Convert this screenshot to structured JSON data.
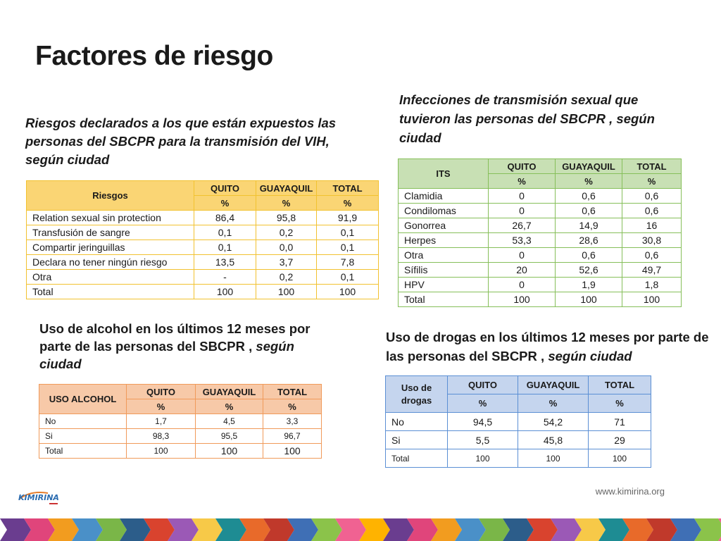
{
  "title": "Factores de riesgo",
  "t1": {
    "caption": "Riesgos declarados a los que están expuestos las personas del SBCPR para la transmisión del VIH, según ciudad",
    "head": [
      "Riesgos",
      "QUITO",
      "GUAYAQUIL",
      "TOTAL"
    ],
    "sub": [
      "%",
      "%",
      "%"
    ],
    "rows": [
      [
        "Relation sexual sin protection",
        "86,4",
        "95,8",
        "91,9"
      ],
      [
        "Transfusión de sangre",
        "0,1",
        "0,2",
        "0,1"
      ],
      [
        "Compartir jeringuillas",
        "0,1",
        "0,0",
        "0,1"
      ],
      [
        "Declara no tener ningún riesgo",
        "13,5",
        "3,7",
        "7,8"
      ],
      [
        "Otra",
        "-",
        "0,2",
        "0,1"
      ],
      [
        "Total",
        "100",
        "100",
        "100"
      ]
    ]
  },
  "t2": {
    "caption": "Infecciones de transmisión sexual que tuvieron las personas del SBCPR , según ciudad",
    "head": [
      "ITS",
      "QUITO",
      "GUAYAQUIL",
      "TOTAL"
    ],
    "sub": [
      "%",
      "%",
      "%"
    ],
    "rows": [
      [
        "Clamidia",
        "0",
        "0,6",
        "0,6"
      ],
      [
        "Condilomas",
        "0",
        "0,6",
        "0,6"
      ],
      [
        "Gonorrea",
        "26,7",
        "14,9",
        "16"
      ],
      [
        "Herpes",
        "53,3",
        "28,6",
        "30,8"
      ],
      [
        "Otra",
        "0",
        "0,6",
        "0,6"
      ],
      [
        "Sífilis",
        "20",
        "52,6",
        "49,7"
      ],
      [
        "HPV",
        "0",
        "1,9",
        "1,8"
      ],
      [
        "Total",
        "100",
        "100",
        "100"
      ]
    ]
  },
  "t3": {
    "caption_a": "Uso de alcohol en los últimos 12 meses por parte de las personas del SBCPR ,",
    "caption_b": "según ciudad",
    "head": [
      "USO ALCOHOL",
      "QUITO",
      "GUAYAQUIL",
      "TOTAL"
    ],
    "sub": [
      "%",
      "%",
      "%"
    ],
    "rows": [
      [
        "No",
        "1,7",
        "4,5",
        "3,3"
      ],
      [
        "Si",
        "98,3",
        "95,5",
        "96,7"
      ],
      [
        "Total",
        "100",
        "100",
        "100"
      ]
    ]
  },
  "t4": {
    "caption_a": "Uso de drogas en los últimos 12 meses por parte de las personas del SBCPR ,",
    "caption_b": "según ciudad",
    "head": [
      "Uso de drogas",
      "QUITO",
      "GUAYAQUIL",
      "TOTAL"
    ],
    "sub": [
      "%",
      "%",
      "%"
    ],
    "rows": [
      [
        "No",
        "94,5",
        "54,2",
        "71"
      ],
      [
        "Si",
        "5,5",
        "45,8",
        "29"
      ],
      [
        "Total",
        "100",
        "100",
        "100"
      ]
    ]
  },
  "footer": {
    "url": "www.kimirina.org",
    "logo": "KIMIRINA"
  },
  "colors": {
    "t1_border": "#f2c230",
    "t2_border": "#86bf5a",
    "t3_border": "#f09a5a",
    "t4_border": "#5b8fd4"
  }
}
